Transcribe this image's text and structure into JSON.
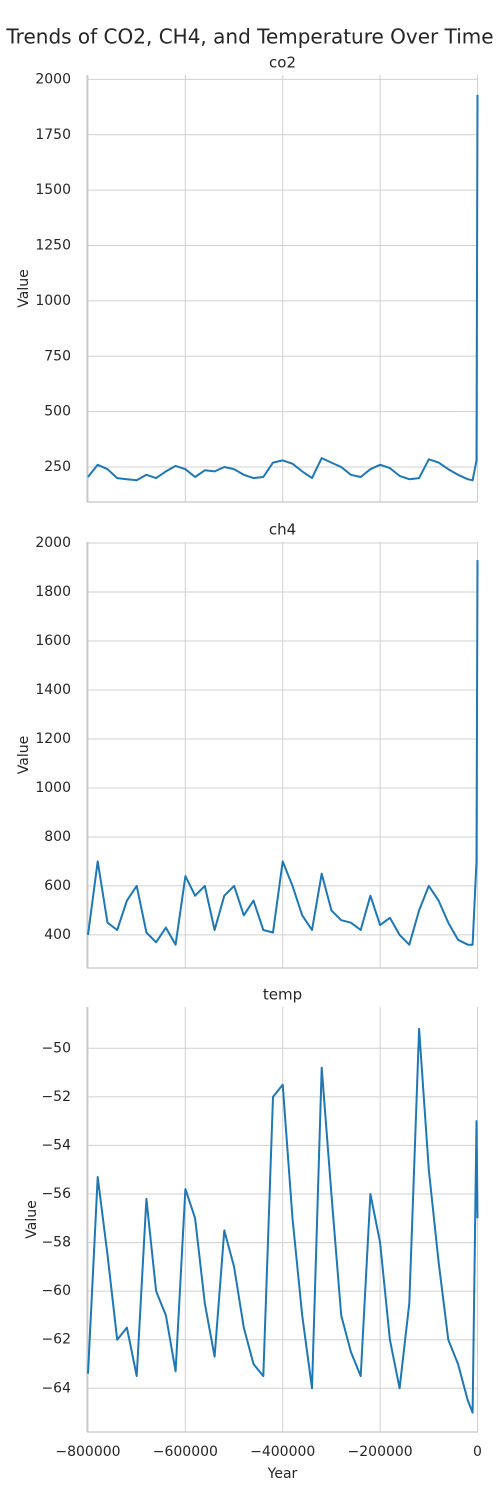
{
  "title": "Trends of CO2, CH4, and Temperature Over Time",
  "chart_data": [
    {
      "type": "line",
      "title": "co2",
      "ylabel": "Value",
      "grid": true,
      "x": [
        -800000,
        -780000,
        -760000,
        -740000,
        -720000,
        -700000,
        -680000,
        -660000,
        -640000,
        -620000,
        -600000,
        -580000,
        -560000,
        -540000,
        -520000,
        -500000,
        -480000,
        -460000,
        -440000,
        -420000,
        -400000,
        -380000,
        -360000,
        -340000,
        -320000,
        -300000,
        -280000,
        -260000,
        -240000,
        -220000,
        -200000,
        -180000,
        -160000,
        -140000,
        -120000,
        -100000,
        -80000,
        -60000,
        -40000,
        -20000,
        -10000,
        -2000,
        0
      ],
      "values": [
        205,
        260,
        240,
        200,
        195,
        190,
        215,
        200,
        230,
        255,
        240,
        205,
        235,
        230,
        250,
        240,
        215,
        200,
        205,
        270,
        280,
        265,
        230,
        200,
        290,
        270,
        250,
        215,
        205,
        240,
        260,
        245,
        210,
        195,
        200,
        285,
        270,
        240,
        215,
        195,
        190,
        280,
        1930
      ],
      "color": "#1f77b4",
      "xlim": [
        -802000,
        1000
      ],
      "xticks": [
        {
          "value": -800000,
          "label": "−800000"
        },
        {
          "value": -600000,
          "label": "−600000"
        },
        {
          "value": -400000,
          "label": "−400000"
        },
        {
          "value": -200000,
          "label": "−200000"
        },
        0
      ],
      "ylim": [
        92,
        2020
      ],
      "yticks": [
        250,
        500,
        750,
        1000,
        1250,
        1500,
        1750,
        2000
      ]
    },
    {
      "type": "line",
      "title": "ch4",
      "ylabel": "Value",
      "grid": true,
      "x": [
        -800000,
        -780000,
        -760000,
        -740000,
        -720000,
        -700000,
        -680000,
        -660000,
        -640000,
        -620000,
        -600000,
        -580000,
        -560000,
        -540000,
        -520000,
        -500000,
        -480000,
        -460000,
        -440000,
        -420000,
        -400000,
        -380000,
        -360000,
        -340000,
        -320000,
        -300000,
        -280000,
        -260000,
        -240000,
        -220000,
        -200000,
        -180000,
        -160000,
        -140000,
        -120000,
        -100000,
        -80000,
        -60000,
        -40000,
        -20000,
        -10000,
        -2000,
        0
      ],
      "values": [
        400,
        700,
        450,
        420,
        540,
        600,
        410,
        370,
        430,
        360,
        640,
        560,
        600,
        420,
        560,
        600,
        480,
        540,
        420,
        410,
        700,
        600,
        480,
        420,
        650,
        500,
        460,
        450,
        420,
        560,
        440,
        470,
        400,
        360,
        500,
        600,
        540,
        450,
        380,
        360,
        360,
        700,
        1930
      ],
      "color": "#1f77b4",
      "xlim": [
        -802000,
        1000
      ],
      "xticks": [
        {
          "value": -800000,
          "label": "−800000"
        },
        {
          "value": -600000,
          "label": "−600000"
        },
        {
          "value": -400000,
          "label": "−400000"
        },
        {
          "value": -200000,
          "label": "−200000"
        },
        0
      ],
      "ylim": [
        265,
        2004
      ],
      "yticks": [
        400,
        600,
        800,
        1000,
        1200,
        1400,
        1600,
        1800,
        2000
      ]
    },
    {
      "type": "line",
      "title": "temp",
      "ylabel": "Value",
      "xlabel": "Year",
      "grid": true,
      "x": [
        -800000,
        -780000,
        -760000,
        -740000,
        -720000,
        -700000,
        -680000,
        -660000,
        -640000,
        -620000,
        -600000,
        -580000,
        -560000,
        -540000,
        -520000,
        -500000,
        -480000,
        -460000,
        -440000,
        -420000,
        -400000,
        -380000,
        -360000,
        -340000,
        -320000,
        -300000,
        -280000,
        -260000,
        -240000,
        -220000,
        -200000,
        -180000,
        -160000,
        -140000,
        -120000,
        -100000,
        -80000,
        -60000,
        -40000,
        -20000,
        -10000,
        -2000,
        0
      ],
      "values": [
        -63.4,
        -55.3,
        -58.5,
        -62,
        -61.5,
        -63.5,
        -56.2,
        -60,
        -61,
        -63.3,
        -55.8,
        -57,
        -60.5,
        -62.7,
        -57.5,
        -59,
        -61.5,
        -63,
        -63.5,
        -52,
        -51.5,
        -57,
        -61,
        -64,
        -50.8,
        -56,
        -61,
        -62.5,
        -63.5,
        -56,
        -58,
        -62,
        -64,
        -60.5,
        -49.2,
        -55,
        -58.8,
        -62,
        -63,
        -64.5,
        -65,
        -53,
        -57
      ],
      "color": "#1f77b4",
      "xlim": [
        -802000,
        1000
      ],
      "xticks": [
        {
          "value": -800000,
          "label": "−800000"
        },
        {
          "value": -600000,
          "label": "−600000"
        },
        {
          "value": -400000,
          "label": "−400000"
        },
        {
          "value": -200000,
          "label": "−200000"
        },
        0
      ],
      "ylim": [
        -65.8,
        -48.3
      ],
      "yticks": [
        {
          "value": -64,
          "label": "−64"
        },
        {
          "value": -62,
          "label": "−62"
        },
        {
          "value": -60,
          "label": "−60"
        },
        {
          "value": -58,
          "label": "−58"
        },
        {
          "value": -56,
          "label": "−56"
        },
        {
          "value": -54,
          "label": "−54"
        },
        {
          "value": -52,
          "label": "−52"
        },
        {
          "value": -50,
          "label": "−50"
        }
      ]
    }
  ]
}
